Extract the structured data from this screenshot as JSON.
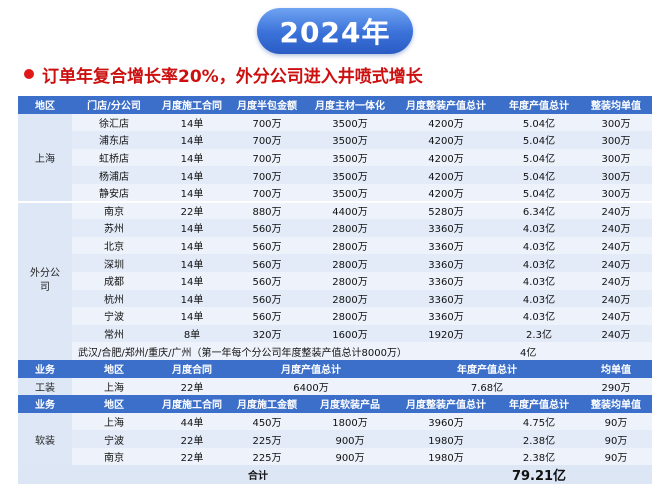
{
  "year_badge": "2024年",
  "headline": "订单年复合增长率20%，外分公司进入井喷式增长",
  "stores_header": [
    "地区",
    "门店/分公司",
    "月度施工合同",
    "月度半包金额",
    "月度主材一体化",
    "月度整装产值总计",
    "年度产值总计",
    "整装均单值"
  ],
  "shanghai": {
    "region": "上海",
    "rows": [
      [
        "徐汇店",
        "14单",
        "700万",
        "3500万",
        "4200万",
        "5.04亿",
        "300万"
      ],
      [
        "浦东店",
        "14单",
        "700万",
        "3500万",
        "4200万",
        "5.04亿",
        "300万"
      ],
      [
        "虹桥店",
        "14单",
        "700万",
        "3500万",
        "4200万",
        "5.04亿",
        "300万"
      ],
      [
        "杨浦店",
        "14单",
        "700万",
        "3500万",
        "4200万",
        "5.04亿",
        "300万"
      ],
      [
        "静安店",
        "14单",
        "700万",
        "3500万",
        "4200万",
        "5.04亿",
        "300万"
      ]
    ]
  },
  "branches": {
    "region": "外分公司",
    "rows": [
      [
        "南京",
        "22单",
        "880万",
        "4400万",
        "5280万",
        "6.34亿",
        "240万"
      ],
      [
        "苏州",
        "14单",
        "560万",
        "2800万",
        "3360万",
        "4.03亿",
        "240万"
      ],
      [
        "北京",
        "14单",
        "560万",
        "2800万",
        "3360万",
        "4.03亿",
        "240万"
      ],
      [
        "深圳",
        "14单",
        "560万",
        "2800万",
        "3360万",
        "4.03亿",
        "240万"
      ],
      [
        "成都",
        "14单",
        "560万",
        "2800万",
        "3360万",
        "4.03亿",
        "240万"
      ],
      [
        "杭州",
        "14单",
        "560万",
        "2800万",
        "3360万",
        "4.03亿",
        "240万"
      ],
      [
        "宁波",
        "14单",
        "560万",
        "2800万",
        "3360万",
        "4.03亿",
        "240万"
      ],
      [
        "常州",
        "8单",
        "320万",
        "1600万",
        "1920万",
        "2.3亿",
        "240万"
      ]
    ]
  },
  "first_year_note": {
    "text": "武汉/合肥/郑州/重庆/广州（第一年每个分公司年度整装产值总计8000万）",
    "value": "4亿"
  },
  "tooling_header": [
    "业务",
    "地区",
    "月度合同",
    "月度产值总计",
    "年度产值总计",
    "均单值"
  ],
  "tooling": {
    "business": "工装",
    "region": "上海",
    "contracts": "22单",
    "monthly_total": "6400万",
    "annual_total": "7.68亿",
    "avg": "290万"
  },
  "soft_header": [
    "业务",
    "地区",
    "月度施工合同",
    "月度施工金额",
    "月度软装产品",
    "月度整装产值总计",
    "年度产值总计",
    "整装均单值"
  ],
  "soft": {
    "business": "软装",
    "rows": [
      [
        "上海",
        "44单",
        "450万",
        "1800万",
        "3960万",
        "4.75亿",
        "90万"
      ],
      [
        "宁波",
        "22单",
        "225万",
        "900万",
        "1980万",
        "2.38亿",
        "90万"
      ],
      [
        "南京",
        "22单",
        "225万",
        "900万",
        "1980万",
        "2.38亿",
        "90万"
      ]
    ]
  },
  "total": {
    "label": "合计",
    "value": "79.21亿"
  },
  "colors": {
    "header_blue": "#3b6fc9",
    "headline_red": "#cc1010",
    "badge_blue": "#3a71d8"
  }
}
